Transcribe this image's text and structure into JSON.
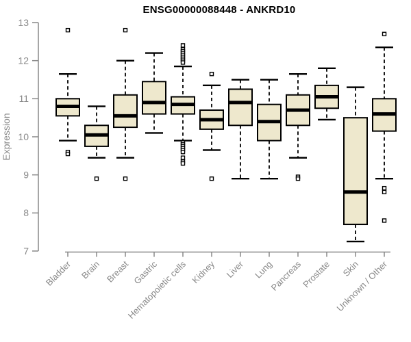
{
  "chart_data": {
    "type": "boxplot",
    "title": "ENSG00000088448 - ANKRD10",
    "xlabel": "",
    "ylabel": "Expression",
    "ylim": [
      7,
      13
    ],
    "yticks": [
      7,
      8,
      9,
      10,
      11,
      12,
      13
    ],
    "grid": false,
    "legend": "none",
    "categories": [
      "Bladder",
      "Brain",
      "Breast",
      "Gastric",
      "Hematopoietic cells",
      "Kidney",
      "Liver",
      "Lung",
      "Pancreas",
      "Prostate",
      "Skin",
      "Unknown / Other"
    ],
    "series": [
      {
        "category": "Bladder",
        "whisker_low": 9.9,
        "q1": 10.55,
        "median": 10.8,
        "q3": 11.0,
        "whisker_high": 11.65,
        "outliers": [
          12.8,
          9.6,
          9.55
        ]
      },
      {
        "category": "Brain",
        "whisker_low": 9.45,
        "q1": 9.75,
        "median": 10.05,
        "q3": 10.3,
        "whisker_high": 10.8,
        "outliers": [
          8.9
        ]
      },
      {
        "category": "Breast",
        "whisker_low": 9.45,
        "q1": 10.25,
        "median": 10.55,
        "q3": 11.1,
        "whisker_high": 12.0,
        "outliers": [
          12.8,
          8.9
        ]
      },
      {
        "category": "Gastric",
        "whisker_low": 10.1,
        "q1": 10.6,
        "median": 10.9,
        "q3": 11.45,
        "whisker_high": 12.2,
        "outliers": []
      },
      {
        "category": "Hematopoietic cells",
        "whisker_low": 9.9,
        "q1": 10.6,
        "median": 10.85,
        "q3": 11.05,
        "whisker_high": 11.85,
        "outliers": [
          12.4,
          12.3,
          12.25,
          12.2,
          12.15,
          12.1,
          12.05,
          12.0,
          11.95,
          9.85,
          9.8,
          9.75,
          9.7,
          9.65,
          9.6,
          9.45,
          9.35,
          9.3
        ]
      },
      {
        "category": "Kidney",
        "whisker_low": 9.65,
        "q1": 10.2,
        "median": 10.45,
        "q3": 10.7,
        "whisker_high": 11.35,
        "outliers": [
          11.65,
          8.9
        ]
      },
      {
        "category": "Liver",
        "whisker_low": 8.9,
        "q1": 10.3,
        "median": 10.9,
        "q3": 11.25,
        "whisker_high": 11.5,
        "outliers": []
      },
      {
        "category": "Lung",
        "whisker_low": 8.9,
        "q1": 9.9,
        "median": 10.4,
        "q3": 10.85,
        "whisker_high": 11.5,
        "outliers": []
      },
      {
        "category": "Pancreas",
        "whisker_low": 9.45,
        "q1": 10.3,
        "median": 10.7,
        "q3": 11.1,
        "whisker_high": 11.65,
        "outliers": [
          8.95,
          8.9
        ]
      },
      {
        "category": "Prostate",
        "whisker_low": 10.45,
        "q1": 10.75,
        "median": 11.05,
        "q3": 11.35,
        "whisker_high": 11.8,
        "outliers": []
      },
      {
        "category": "Skin",
        "whisker_low": 7.25,
        "q1": 7.7,
        "median": 8.55,
        "q3": 10.5,
        "whisker_high": 11.3,
        "outliers": []
      },
      {
        "category": "Unknown / Other",
        "whisker_low": 8.9,
        "q1": 10.15,
        "median": 10.6,
        "q3": 11.0,
        "whisker_high": 12.35,
        "outliers": [
          12.7,
          8.65,
          8.55,
          7.8
        ]
      }
    ],
    "style": {
      "box_fill": "#EEE8CD",
      "box_border": "#000000",
      "median_color": "#000000",
      "outlier_fill": "#ffffff",
      "outlier_border": "#000000",
      "axis_color": "#888888",
      "text_color": "#888888",
      "title_color": "#000000",
      "background": "#ffffff"
    }
  }
}
